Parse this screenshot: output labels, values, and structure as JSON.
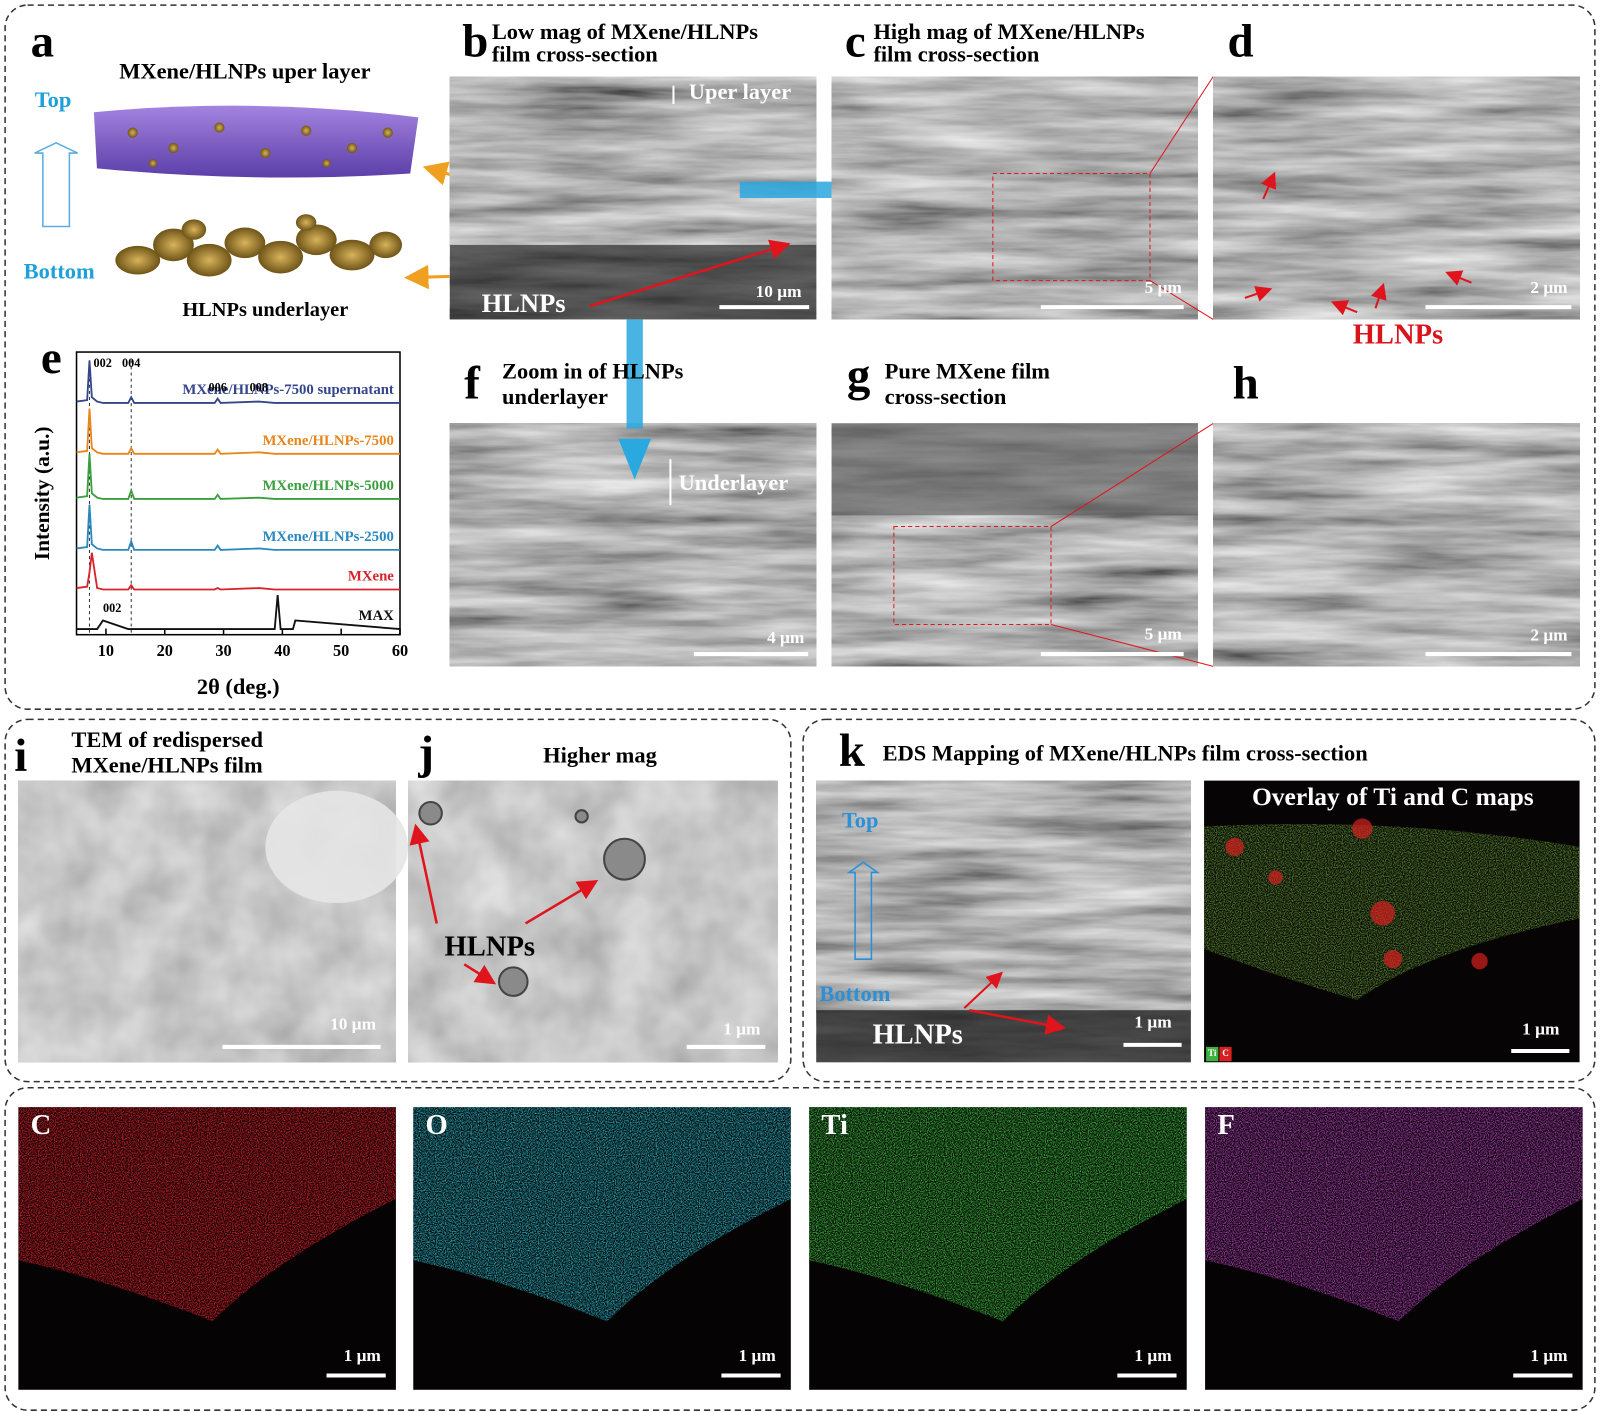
{
  "panel_a": {
    "letter": "a",
    "upper_label": "MXene/HLNPs uper layer",
    "top": "Top",
    "bottom": "Bottom",
    "under_label": "HLNPs underlayer"
  },
  "panel_b": {
    "letter": "b",
    "title": [
      "Low mag of MXene/HLNPs",
      "film cross-section"
    ],
    "annotation": "Uper layer",
    "particles": "HLNPs",
    "scale": "10 μm"
  },
  "panel_c": {
    "letter": "c",
    "title": [
      "High mag of MXene/HLNPs",
      "film cross-section"
    ],
    "scale": "5 μm"
  },
  "panel_d": {
    "letter": "d",
    "particles": "HLNPs",
    "scale": "2 μm"
  },
  "panel_e": {
    "letter": "e"
  },
  "chart_data": {
    "type": "line",
    "xlabel": "2θ (deg.)",
    "ylabel": "Intensity (a.u.)",
    "xlim": [
      5,
      60
    ],
    "xticks": [
      10,
      20,
      30,
      40,
      50,
      60
    ],
    "ylim": [
      0,
      100
    ],
    "x": [
      5,
      6.8,
      7.2,
      7.6,
      8.5,
      9.5,
      13.8,
      14.3,
      14.8,
      28.5,
      29,
      29.5,
      36,
      38.7,
      39.2,
      39.7,
      41.8,
      42.2,
      60
    ],
    "series": [
      {
        "name": "MXene/HLNPs-7500 supernatant",
        "color": "#34468c",
        "values": [
          82.5,
          83,
          97,
          84,
          82.5,
          82,
          82,
          84,
          82,
          82,
          83.5,
          82,
          82.5,
          82,
          82,
          82,
          82,
          82,
          82
        ]
      },
      {
        "name": "MXene/HLNPs-7500",
        "color": "#e8851c",
        "values": [
          64.5,
          65,
          80,
          66,
          64.5,
          64,
          64,
          66,
          64,
          64,
          65.5,
          64,
          64.5,
          64,
          64,
          64,
          64,
          64,
          64
        ]
      },
      {
        "name": "MXene/HLNPs-5000",
        "color": "#3a9f3e",
        "values": [
          48.5,
          49,
          64,
          50,
          48.5,
          48,
          48,
          51,
          48,
          48,
          49.5,
          48,
          48.5,
          48,
          48,
          48,
          48,
          48,
          48
        ]
      },
      {
        "name": "MXene/HLNPs-2500",
        "color": "#2a88c0",
        "values": [
          30.5,
          31,
          46,
          32,
          30.5,
          30,
          30,
          33,
          30,
          30,
          31.5,
          30,
          30.5,
          30,
          30,
          30,
          30,
          30,
          30
        ]
      },
      {
        "name": "MXene",
        "color": "#d8232a",
        "values": [
          16.5,
          17,
          22,
          29,
          16.5,
          16,
          16,
          17.5,
          16,
          16,
          16.5,
          16,
          16.5,
          16,
          16,
          16,
          16,
          16,
          16
        ]
      },
      {
        "name": "MAX",
        "color": "#111111",
        "values": [
          2,
          2,
          2,
          2,
          2,
          5,
          2,
          2,
          2,
          2,
          2,
          2,
          2,
          2,
          14,
          2,
          2,
          5,
          2
        ]
      }
    ],
    "reference_lines": [
      7.2,
      14.3
    ],
    "peak_labels": [
      {
        "text": "002",
        "x": 7.2
      },
      {
        "text": "004",
        "x": 14.3
      },
      {
        "text": "006",
        "x": 29
      },
      {
        "text": "008",
        "x": 36
      }
    ],
    "max_peak_label": {
      "text": "002",
      "x": 9.5
    }
  },
  "panel_f": {
    "letter": "f",
    "title": [
      "Zoom in of HLNPs",
      "underlayer"
    ],
    "annotation": "Underlayer",
    "scale": "4 μm"
  },
  "panel_g": {
    "letter": "g",
    "title": [
      "Pure MXene film",
      "cross-section"
    ],
    "scale": "5 μm"
  },
  "panel_h": {
    "letter": "h",
    "scale": "2 μm"
  },
  "panel_i": {
    "letter": "i",
    "title": [
      "TEM of redispersed",
      "MXene/HLNPs film"
    ],
    "scale": "10 μm"
  },
  "panel_j": {
    "letter": "j",
    "title": "Higher mag",
    "particles": "HLNPs",
    "scale": "1 μm"
  },
  "panel_k": {
    "letter": "k",
    "title": "EDS Mapping of MXene/HLNPs film cross-section",
    "top": "Top",
    "bottom": "Bottom",
    "particles": "HLNPs",
    "scale": "1 μm",
    "overlay_title": "Overlay of Ti and C maps",
    "overlay_scale": "1 μm",
    "overlay_legend": [
      "Ti",
      "C"
    ]
  },
  "maps": [
    {
      "element": "C",
      "scale": "1 μm"
    },
    {
      "element": "O",
      "scale": "1 μm"
    },
    {
      "element": "Ti",
      "scale": "1 μm"
    },
    {
      "element": "F",
      "scale": "1 μm"
    }
  ]
}
